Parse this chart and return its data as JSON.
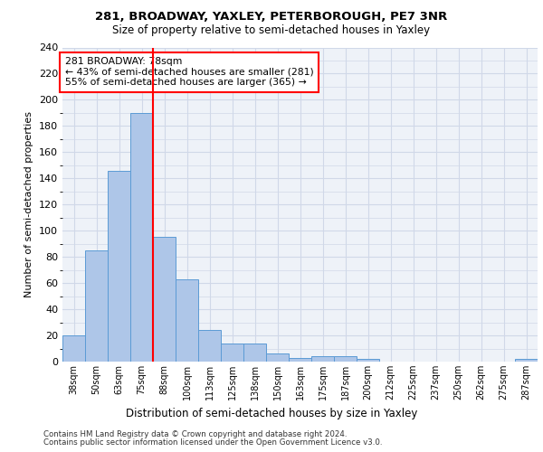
{
  "title1": "281, BROADWAY, YAXLEY, PETERBOROUGH, PE7 3NR",
  "title2": "Size of property relative to semi-detached houses in Yaxley",
  "xlabel": "Distribution of semi-detached houses by size in Yaxley",
  "ylabel": "Number of semi-detached properties",
  "categories": [
    "38sqm",
    "50sqm",
    "63sqm",
    "75sqm",
    "88sqm",
    "100sqm",
    "113sqm",
    "125sqm",
    "138sqm",
    "150sqm",
    "163sqm",
    "175sqm",
    "187sqm",
    "200sqm",
    "212sqm",
    "225sqm",
    "237sqm",
    "250sqm",
    "262sqm",
    "275sqm",
    "287sqm"
  ],
  "values": [
    20,
    85,
    146,
    190,
    95,
    63,
    24,
    14,
    14,
    6,
    3,
    4,
    4,
    2,
    0,
    0,
    0,
    0,
    0,
    0,
    2
  ],
  "bar_color": "#aec6e8",
  "bar_edge_color": "#5b9bd5",
  "grid_color": "#d0d8e8",
  "background_color": "#eef2f8",
  "vline_x": 3.5,
  "vline_color": "red",
  "annotation_title": "281 BROADWAY: 78sqm",
  "annotation_line1": "← 43% of semi-detached houses are smaller (281)",
  "annotation_line2": "55% of semi-detached houses are larger (365) →",
  "annotation_box_color": "white",
  "annotation_box_edge": "red",
  "ylim": [
    0,
    240
  ],
  "yticks": [
    0,
    20,
    40,
    60,
    80,
    100,
    120,
    140,
    160,
    180,
    200,
    220,
    240
  ],
  "footer1": "Contains HM Land Registry data © Crown copyright and database right 2024.",
  "footer2": "Contains public sector information licensed under the Open Government Licence v3.0."
}
